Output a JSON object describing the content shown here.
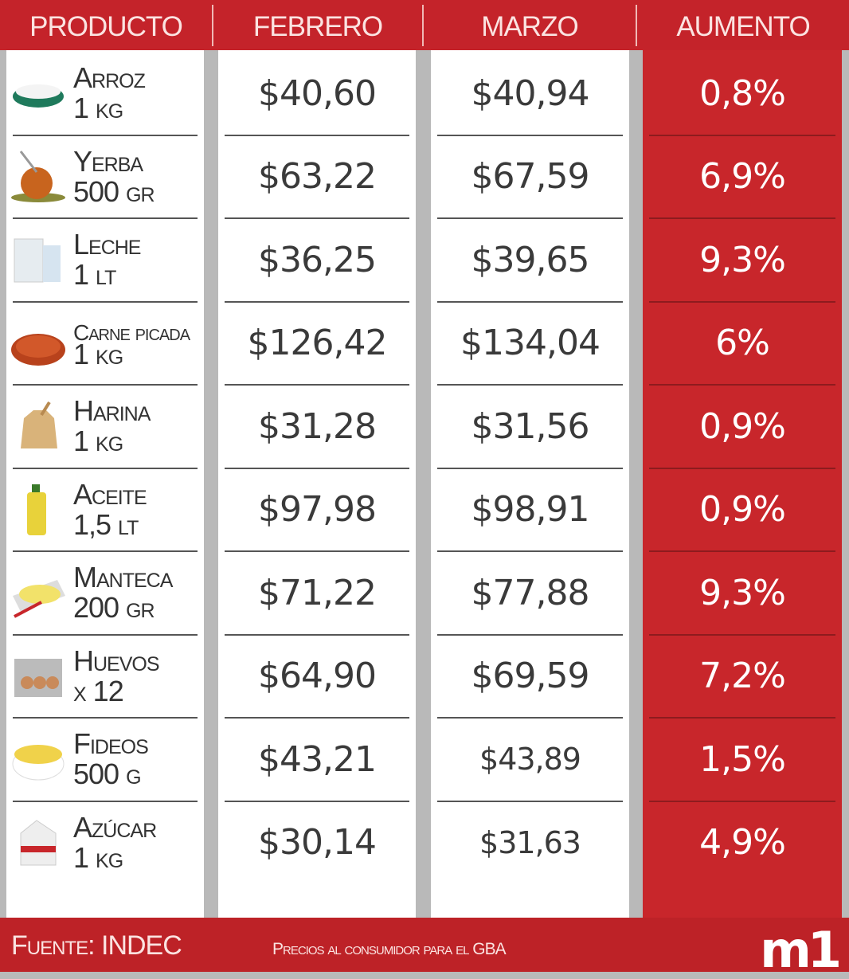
{
  "header": {
    "producto": "PRODUCTO",
    "febrero": "FEBRERO",
    "marzo": "MARZO",
    "aumento": "AUMENTO"
  },
  "rows": [
    {
      "name": "Arroz",
      "qty": "1 kg",
      "icon": "rice-bowl-icon",
      "color": "#1f7a5c",
      "febrero": "$40,60",
      "marzo": "$40,94",
      "aumento": "0,8%"
    },
    {
      "name": "Yerba",
      "qty": "500 gr",
      "icon": "mate-icon",
      "color": "#c8641e",
      "febrero": "$63,22",
      "marzo": "$67,59",
      "aumento": "6,9%"
    },
    {
      "name": "Leche",
      "qty": "1 lt",
      "icon": "milk-icon",
      "color": "#e6ecf0",
      "febrero": "$36,25",
      "marzo": "$39,65",
      "aumento": "9,3%"
    },
    {
      "name": "Carne picada",
      "qty": "1 kg",
      "icon": "ground-meat-icon",
      "color": "#b8421c",
      "febrero": "$126,42",
      "marzo": "$134,04",
      "aumento": "6%"
    },
    {
      "name": "Harina",
      "qty": "1 kg",
      "icon": "flour-sack-icon",
      "color": "#d9b37a",
      "febrero": "$31,28",
      "marzo": "$31,56",
      "aumento": "0,9%"
    },
    {
      "name": "Aceite",
      "qty": "1,5 lt",
      "icon": "oil-bottle-icon",
      "color": "#e8d23a",
      "febrero": "$97,98",
      "marzo": "$98,91",
      "aumento": "0,9%"
    },
    {
      "name": "Manteca",
      "qty": "200 gr",
      "icon": "butter-icon",
      "color": "#f2e26a",
      "febrero": "$71,22",
      "marzo": "$77,88",
      "aumento": "9,3%"
    },
    {
      "name": "Huevos",
      "qty": "x 12",
      "icon": "egg-carton-icon",
      "color": "#c98a5a",
      "febrero": "$64,90",
      "marzo": "$69,59",
      "aumento": "7,2%"
    },
    {
      "name": "Fideos",
      "qty": "500 g",
      "icon": "pasta-bowl-icon",
      "color": "#f0d24a",
      "febrero": "$43,21",
      "marzo": "$43,89",
      "aumento": "1,5%"
    },
    {
      "name": "Azúcar",
      "qty": "1 kg",
      "icon": "sugar-bag-icon",
      "color": "#eeeeee",
      "febrero": "$30,14",
      "marzo": "$31,63",
      "aumento": "4,9%"
    }
  ],
  "footer": {
    "source": "Fuente: INDEC",
    "note": "Precios al consumidor para el GBA",
    "logo": "m1"
  },
  "colors": {
    "brand_red": "#c4232a",
    "column_red": "#c8262b"
  },
  "chart_data": {
    "type": "table",
    "columns": [
      "PRODUCTO",
      "FEBRERO",
      "MARZO",
      "AUMENTO"
    ],
    "rows": [
      [
        "Arroz 1 kg",
        "$40,60",
        "$40,94",
        "0,8%"
      ],
      [
        "Yerba 500 gr",
        "$63,22",
        "$67,59",
        "6,9%"
      ],
      [
        "Leche 1 lt",
        "$36,25",
        "$39,65",
        "9,3%"
      ],
      [
        "Carne picada 1 kg",
        "$126,42",
        "$134,04",
        "6%"
      ],
      [
        "Harina 1 kg",
        "$31,28",
        "$31,56",
        "0,9%"
      ],
      [
        "Aceite 1,5 lt",
        "$97,98",
        "$98,91",
        "0,9%"
      ],
      [
        "Manteca 200 gr",
        "$71,22",
        "$77,88",
        "9,3%"
      ],
      [
        "Huevos x 12",
        "$64,90",
        "$69,59",
        "7,2%"
      ],
      [
        "Fideos 500 g",
        "$43,21",
        "$43,89",
        "1,5%"
      ],
      [
        "Azúcar 1 kg",
        "$30,14",
        "$31,63",
        "4,9%"
      ]
    ]
  }
}
